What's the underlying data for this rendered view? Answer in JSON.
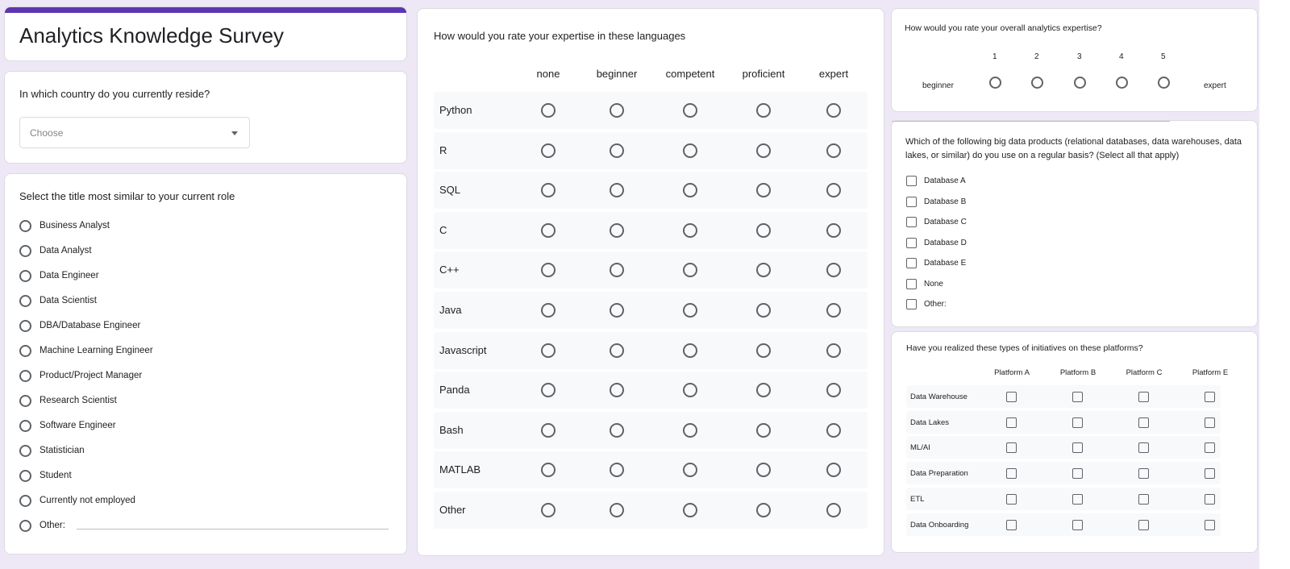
{
  "survey": {
    "title": "Analytics Knowledge Survey"
  },
  "country": {
    "question": "In which country do you currently reside?",
    "placeholder": "Choose"
  },
  "role": {
    "question": "Select the title most similar to your current role",
    "options": [
      "Business Analyst",
      "Data Analyst",
      "Data Engineer",
      "Data Scientist",
      "DBA/Database Engineer",
      "Machine Learning Engineer",
      "Product/Project Manager",
      "Research Scientist",
      "Software Engineer",
      "Statistician",
      "Student",
      "Currently not employed",
      "Other:"
    ]
  },
  "languages": {
    "question": "How would you rate your expertise in these languages",
    "columns": [
      "none",
      "beginner",
      "competent",
      "proficient",
      "expert"
    ],
    "rows": [
      "Python",
      "R",
      "SQL",
      "C",
      "C++",
      "Java",
      "Javascript",
      "Panda",
      "Bash",
      "MATLAB",
      "Other"
    ]
  },
  "overall": {
    "question": "How would you rate your overall analytics expertise?",
    "scale": [
      "1",
      "2",
      "3",
      "4",
      "5"
    ],
    "low_label": "beginner",
    "high_label": "expert"
  },
  "bigdata": {
    "question": "Which of the following big data products (relational databases, data warehouses, data lakes, or similar) do you use on a regular basis? (Select all that apply)",
    "options": [
      "Database A",
      "Database B",
      "Database C",
      "Database D",
      "Database E",
      "None",
      "Other:"
    ]
  },
  "initiatives": {
    "question": "Have you realized these types of initiatives on these platforms?",
    "columns": [
      "Platform A",
      "Platform B",
      "Platform C",
      "Platform E"
    ],
    "rows": [
      "Data Warehouse",
      "Data Lakes",
      "ML/AI",
      "Data Preparation",
      "ETL",
      "Data Onboarding"
    ]
  },
  "colors": {
    "accent": "#5e35b1",
    "background": "#ede7f6"
  }
}
